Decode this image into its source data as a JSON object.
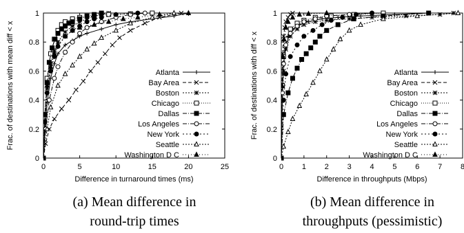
{
  "chart_data": [
    {
      "type": "line",
      "xlabel": "Difference in turnaround times (ms)",
      "ylabel": "Frac. of destinations with mean diff < x",
      "xlim": [
        0,
        25
      ],
      "ylim": [
        0,
        1
      ],
      "xticks": [
        "0",
        "5",
        "10",
        "15",
        "20",
        "25"
      ],
      "yticks": [
        "0",
        "0.2",
        "0.4",
        "0.6",
        "0.8",
        "1"
      ],
      "legend_position": "right",
      "caption_lines": [
        "(a) Mean difference in",
        "round-trip times"
      ],
      "series": [
        {
          "name": "Atlanta",
          "marker": "plus",
          "dash": "",
          "x": [
            0,
            0.2,
            0.5,
            1,
            1.5,
            2,
            3,
            4,
            5,
            6,
            8,
            10,
            12,
            15,
            18,
            20
          ],
          "y": [
            0,
            0.18,
            0.38,
            0.55,
            0.65,
            0.72,
            0.78,
            0.81,
            0.84,
            0.86,
            0.89,
            0.92,
            0.94,
            0.96,
            0.98,
            1.0
          ]
        },
        {
          "name": "Bay Area",
          "marker": "x",
          "dash": "5,3",
          "x": [
            0,
            0.3,
            0.8,
            1.5,
            2.5,
            3.5,
            4.5,
            5.5,
            6.5,
            7.5,
            8.5,
            9.5,
            10.5,
            12,
            14,
            16,
            19
          ],
          "y": [
            0,
            0.1,
            0.2,
            0.27,
            0.34,
            0.4,
            0.47,
            0.53,
            0.6,
            0.66,
            0.72,
            0.78,
            0.83,
            0.88,
            0.93,
            0.97,
            1.0
          ]
        },
        {
          "name": "Boston",
          "marker": "asterisk",
          "dash": "2,2",
          "x": [
            0,
            0.2,
            0.5,
            1,
            1.5,
            2,
            3,
            4,
            5,
            6,
            7,
            8,
            9
          ],
          "y": [
            0,
            0.25,
            0.48,
            0.65,
            0.74,
            0.8,
            0.87,
            0.91,
            0.94,
            0.96,
            0.98,
            0.99,
            1.0
          ]
        },
        {
          "name": "Chicago",
          "marker": "square",
          "dash": "1,2",
          "x": [
            0,
            0.2,
            0.5,
            1,
            1.5,
            2,
            2.5,
            3,
            4,
            5,
            7,
            9,
            12,
            15
          ],
          "y": [
            0,
            0.3,
            0.55,
            0.72,
            0.82,
            0.88,
            0.92,
            0.94,
            0.96,
            0.97,
            0.98,
            0.99,
            0.995,
            1.0
          ]
        },
        {
          "name": "Dallas",
          "marker": "square-filled",
          "dash": "6,2,1,2",
          "x": [
            0,
            0.2,
            0.5,
            0.8,
            1.2,
            1.6,
            2,
            2.5,
            3,
            3.5,
            4,
            5,
            6,
            7,
            8
          ],
          "y": [
            0,
            0.3,
            0.52,
            0.66,
            0.76,
            0.82,
            0.86,
            0.89,
            0.91,
            0.93,
            0.94,
            0.96,
            0.98,
            0.99,
            1.0
          ]
        },
        {
          "name": "Los Angeles",
          "marker": "circle",
          "dash": "6,2,1,2",
          "x": [
            0,
            0.3,
            0.8,
            1.5,
            2,
            3,
            4,
            5,
            6,
            8,
            10,
            12,
            14
          ],
          "y": [
            0,
            0.2,
            0.4,
            0.55,
            0.63,
            0.73,
            0.8,
            0.86,
            0.9,
            0.94,
            0.97,
            0.99,
            1.0
          ]
        },
        {
          "name": "New York",
          "marker": "circle-filled",
          "dash": "2,3",
          "x": [
            0,
            0.2,
            0.5,
            1,
            1.5,
            2,
            3,
            4,
            5,
            6,
            7,
            8,
            10,
            13
          ],
          "y": [
            0,
            0.25,
            0.45,
            0.6,
            0.7,
            0.77,
            0.84,
            0.88,
            0.91,
            0.94,
            0.96,
            0.97,
            0.99,
            1.0
          ]
        },
        {
          "name": "Seattle",
          "marker": "triangle",
          "dash": "2,2",
          "x": [
            0,
            0.5,
            1,
            2,
            3,
            4,
            5,
            6,
            7,
            8,
            10,
            12,
            15,
            18
          ],
          "y": [
            0,
            0.2,
            0.35,
            0.5,
            0.58,
            0.64,
            0.7,
            0.75,
            0.79,
            0.83,
            0.88,
            0.93,
            0.97,
            1.0
          ]
        },
        {
          "name": "Washington D C",
          "marker": "triangle-filled",
          "dash": "1,3",
          "x": [
            0,
            0.2,
            0.5,
            1,
            1.5,
            2,
            3,
            4,
            5,
            7,
            9,
            11,
            13,
            16,
            20
          ],
          "y": [
            0,
            0.3,
            0.5,
            0.63,
            0.72,
            0.78,
            0.84,
            0.88,
            0.9,
            0.92,
            0.94,
            0.96,
            0.97,
            0.99,
            1.0
          ]
        }
      ]
    },
    {
      "type": "line",
      "xlabel": "Difference in throughputs (Mbps)",
      "ylabel": "Frac. of destinations with diff < x",
      "xlim": [
        0,
        8
      ],
      "ylim": [
        0,
        1
      ],
      "xticks": [
        "0",
        "1",
        "2",
        "3",
        "4",
        "5",
        "6",
        "7",
        "8"
      ],
      "yticks": [
        "0",
        "0.2",
        "0.4",
        "0.6",
        "0.8",
        "1"
      ],
      "legend_position": "right",
      "caption_lines": [
        "(b) Mean difference in",
        "throughputs (pessimistic)"
      ],
      "series": [
        {
          "name": "Atlanta",
          "marker": "plus",
          "dash": "",
          "x": [
            0,
            0.05,
            0.1,
            0.2,
            0.3,
            0.5,
            0.8,
            1.2,
            1.8,
            2.5,
            3.5,
            5,
            6.5
          ],
          "y": [
            0,
            0.45,
            0.65,
            0.78,
            0.84,
            0.89,
            0.92,
            0.94,
            0.96,
            0.97,
            0.98,
            0.99,
            1.0
          ]
        },
        {
          "name": "Bay Area",
          "marker": "x",
          "dash": "5,3",
          "x": [
            0,
            0.03,
            0.06,
            0.1,
            0.15,
            0.2,
            0.3,
            0.4,
            0.5
          ],
          "y": [
            0,
            0.5,
            0.72,
            0.84,
            0.9,
            0.94,
            0.97,
            0.99,
            1.0
          ]
        },
        {
          "name": "Boston",
          "marker": "asterisk",
          "dash": "2,2",
          "x": [
            0,
            0.05,
            0.1,
            0.2,
            0.4,
            0.7,
            1,
            1.5,
            2,
            3,
            4,
            5.5,
            7,
            7.6
          ],
          "y": [
            0,
            0.4,
            0.6,
            0.75,
            0.84,
            0.89,
            0.92,
            0.94,
            0.95,
            0.96,
            0.97,
            0.98,
            0.99,
            1.0
          ]
        },
        {
          "name": "Chicago",
          "marker": "square",
          "dash": "1,2",
          "x": [
            0,
            0.05,
            0.1,
            0.2,
            0.4,
            0.7,
            1,
            1.5,
            2.2,
            3.2,
            4.5
          ],
          "y": [
            0,
            0.5,
            0.7,
            0.82,
            0.89,
            0.93,
            0.95,
            0.97,
            0.98,
            0.99,
            1.0
          ]
        },
        {
          "name": "Dallas",
          "marker": "square-filled",
          "dash": "6,2,1,2",
          "x": [
            0,
            0.1,
            0.3,
            0.5,
            0.7,
            0.9,
            1.1,
            1.3,
            1.5,
            1.7,
            2,
            2.5,
            3.2,
            4.5,
            6.5
          ],
          "y": [
            0,
            0.3,
            0.45,
            0.55,
            0.62,
            0.68,
            0.72,
            0.76,
            0.8,
            0.84,
            0.88,
            0.92,
            0.96,
            0.98,
            1.0
          ]
        },
        {
          "name": "Los Angeles",
          "marker": "circle",
          "dash": "6,2,1,2",
          "x": [
            0,
            0.05,
            0.1,
            0.2,
            0.4,
            0.7,
            1,
            1.5,
            2,
            3,
            4
          ],
          "y": [
            0,
            0.45,
            0.65,
            0.78,
            0.86,
            0.91,
            0.94,
            0.96,
            0.98,
            0.99,
            1.0
          ]
        },
        {
          "name": "New York",
          "marker": "circle-filled",
          "dash": "2,3",
          "x": [
            0,
            0.1,
            0.2,
            0.4,
            0.7,
            1,
            1.4,
            1.8,
            2.2,
            2.7,
            3.3,
            4
          ],
          "y": [
            0,
            0.4,
            0.58,
            0.7,
            0.78,
            0.84,
            0.88,
            0.92,
            0.95,
            0.97,
            0.99,
            1.0
          ]
        },
        {
          "name": "Seattle",
          "marker": "triangle",
          "dash": "2,2",
          "x": [
            0,
            0.1,
            0.3,
            0.5,
            0.8,
            1.1,
            1.4,
            1.7,
            2,
            2.3,
            2.6,
            3,
            3.5,
            4.5,
            6,
            7.8
          ],
          "y": [
            0,
            0.08,
            0.18,
            0.27,
            0.36,
            0.44,
            0.52,
            0.6,
            0.68,
            0.75,
            0.82,
            0.88,
            0.92,
            0.96,
            0.98,
            1.0
          ]
        },
        {
          "name": "Washington D C",
          "marker": "triangle-filled",
          "dash": "1,3",
          "x": [
            0,
            0.03,
            0.07,
            0.12,
            0.2,
            0.3,
            0.5,
            0.8,
            1.2,
            2
          ],
          "y": [
            0,
            0.5,
            0.7,
            0.82,
            0.9,
            0.94,
            0.97,
            0.99,
            0.995,
            1.0
          ]
        }
      ]
    }
  ]
}
